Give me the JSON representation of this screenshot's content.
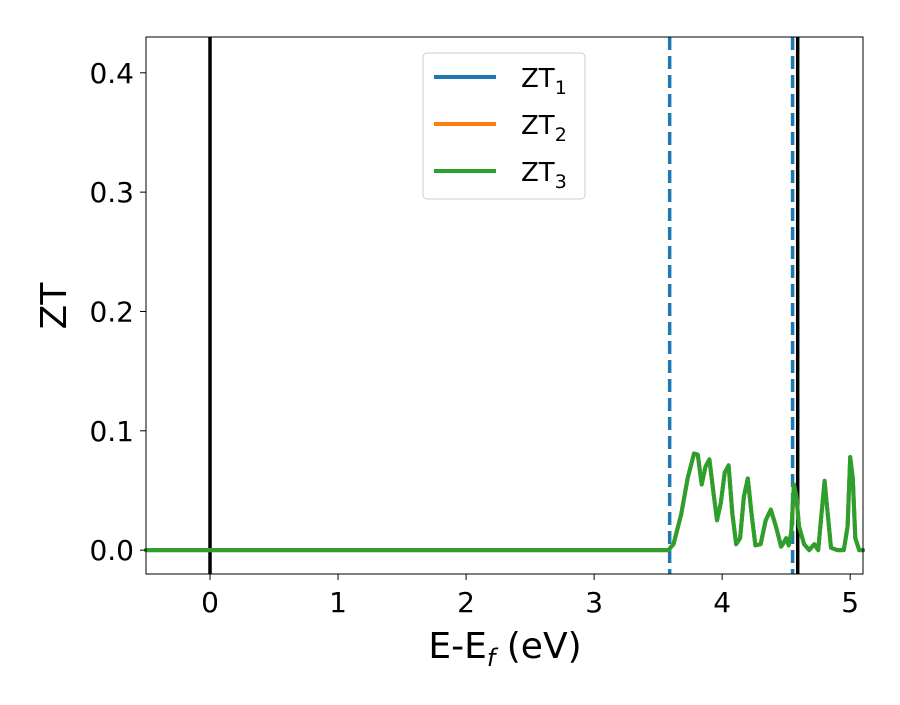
{
  "chart_data": {
    "type": "line",
    "title": "",
    "xlabel_main": "E-E",
    "xlabel_sub": "f",
    "xlabel_tail": " (eV)",
    "ylabel": "ZT",
    "xlim": [
      -0.5,
      5.1
    ],
    "ylim": [
      -0.02,
      0.43
    ],
    "x_ticks": [
      0,
      1,
      2,
      3,
      4,
      5
    ],
    "x_tick_labels": [
      "0",
      "1",
      "2",
      "3",
      "4",
      "5"
    ],
    "y_ticks": [
      0.0,
      0.1,
      0.2,
      0.3,
      0.4
    ],
    "y_tick_labels": [
      "0.0",
      "0.1",
      "0.2",
      "0.3",
      "0.4"
    ],
    "grid": false,
    "legend_position": "top-center",
    "series": [
      {
        "name": "ZT",
        "subscript": "1",
        "color": "#1f77b4"
      },
      {
        "name": "ZT",
        "subscript": "2",
        "color": "#ff7f0e"
      },
      {
        "name": "ZT",
        "subscript": "3",
        "color": "#2ca02c"
      }
    ],
    "curve": {
      "x": [
        -0.5,
        3.5,
        3.58,
        3.62,
        3.68,
        3.73,
        3.78,
        3.81,
        3.84,
        3.87,
        3.9,
        3.93,
        3.96,
        3.99,
        4.02,
        4.05,
        4.08,
        4.11,
        4.14,
        4.17,
        4.2,
        4.23,
        4.26,
        4.3,
        4.34,
        4.38,
        4.42,
        4.46,
        4.48,
        4.5,
        4.52,
        4.54,
        4.56,
        4.58,
        4.6,
        4.64,
        4.68,
        4.72,
        4.75,
        4.78,
        4.8,
        4.82,
        4.85,
        4.9,
        4.95,
        4.98,
        5.0,
        5.02,
        5.04,
        5.07,
        5.1
      ],
      "y": [
        0.0,
        0.0,
        0.0,
        0.005,
        0.03,
        0.06,
        0.081,
        0.08,
        0.055,
        0.07,
        0.076,
        0.05,
        0.025,
        0.04,
        0.065,
        0.071,
        0.03,
        0.005,
        0.01,
        0.045,
        0.06,
        0.03,
        0.004,
        0.005,
        0.025,
        0.034,
        0.02,
        0.003,
        0.006,
        0.01,
        0.004,
        0.015,
        0.055,
        0.045,
        0.02,
        0.005,
        0.0,
        0.005,
        0.0,
        0.035,
        0.058,
        0.035,
        0.002,
        0.0,
        0.0,
        0.02,
        0.078,
        0.06,
        0.01,
        0.0,
        0.0
      ]
    },
    "vlines": [
      {
        "x": 0.0,
        "color": "#000000",
        "style": "solid"
      },
      {
        "x": 4.59,
        "color": "#000000",
        "style": "solid"
      },
      {
        "x": 3.59,
        "color": "#1f77b4",
        "style": "dashed"
      },
      {
        "x": 4.55,
        "color": "#1f77b4",
        "style": "dashed"
      }
    ]
  }
}
